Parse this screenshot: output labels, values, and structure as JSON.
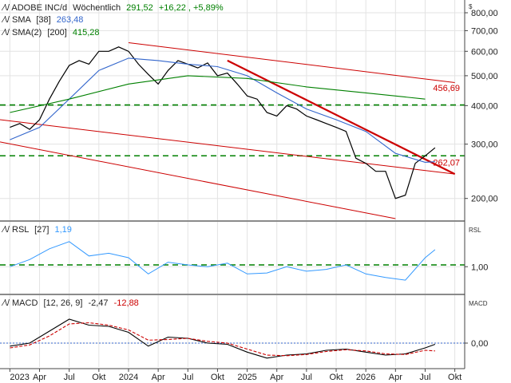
{
  "chart_data": {
    "type": "line",
    "currency_symbol": "$",
    "panels": {
      "price": {
        "header": {
          "ticker": "ADOBE INC/d",
          "interval": "Wöchentlich",
          "last": "291,52",
          "change": "+16,22",
          "change_pct": "+5,89%",
          "sma_short_label": "SMA",
          "sma_short_param": "[38]",
          "sma_short_value": "263,48",
          "sma_long_label": "SMA(2)",
          "sma_long_param": "[200]",
          "sma_long_value": "415,28"
        },
        "scale": "log",
        "ylim": [
          170,
          880
        ],
        "y_ticks": [
          "800,00",
          "700,00",
          "600,00",
          "500,00",
          "400,00",
          "300,00",
          "200,00"
        ],
        "y_tick_values": [
          800,
          700,
          600,
          500,
          400,
          300,
          200
        ],
        "series": [
          {
            "id": "close",
            "color": "#000000",
            "x": [
              "2023-01",
              "2023-02",
              "2023-03",
              "2023-04",
              "2023-05",
              "2023-06",
              "2023-07",
              "2023-08",
              "2023-09",
              "2023-10",
              "2023-11",
              "2023-12",
              "2024-01",
              "2024-02",
              "2024-03",
              "2024-04",
              "2024-05",
              "2024-06",
              "2024-07",
              "2024-08",
              "2024-09",
              "2024-10",
              "2024-11",
              "2024-12",
              "2025-01",
              "2025-02",
              "2025-03",
              "2025-04",
              "2025-05",
              "2025-06",
              "2025-07",
              "2025-08",
              "2025-09",
              "2025-10",
              "2025-11",
              "2025-12",
              "2026-01",
              "2026-02",
              "2026-03",
              "2026-04",
              "2026-05",
              "2026-06",
              "2026-07",
              "2026-08"
            ],
            "values": [
              340,
              350,
              335,
              360,
              420,
              480,
              540,
              560,
              545,
              600,
              600,
              620,
              600,
              545,
              505,
              470,
              520,
              560,
              545,
              530,
              550,
              500,
              510,
              470,
              430,
              420,
              380,
              370,
              400,
              390,
              370,
              360,
              350,
              340,
              330,
              270,
              260,
              245,
              245,
              200,
              205,
              260,
              275,
              292
            ]
          },
          {
            "id": "sma_short",
            "color": "#3366cc",
            "x": [
              "2023-01",
              "2023-04",
              "2023-07",
              "2023-10",
              "2024-01",
              "2024-04",
              "2024-07",
              "2024-10",
              "2025-01",
              "2025-04",
              "2025-07",
              "2025-10",
              "2026-01",
              "2026-04",
              "2026-07",
              "2026-08"
            ],
            "values": [
              310,
              340,
              420,
              520,
              570,
              560,
              545,
              535,
              500,
              440,
              390,
              360,
              330,
              280,
              262,
              263
            ]
          },
          {
            "id": "sma_long",
            "color": "#008000",
            "x": [
              "2023-01",
              "2023-07",
              "2024-01",
              "2024-07",
              "2025-01",
              "2025-07",
              "2026-01",
              "2026-07"
            ],
            "values": [
              380,
              420,
              470,
              500,
              490,
              460,
              440,
              420
            ]
          }
        ],
        "horizontal_levels": [
          {
            "value": 402,
            "color": "#008000",
            "style": "dashed"
          },
          {
            "value": 275,
            "color": "#008000",
            "style": "dashed"
          }
        ],
        "channel_lines": [
          {
            "from": [
              "2024-01",
              640
            ],
            "to": [
              "2026-10",
              475
            ],
            "color": "#cc0000"
          },
          {
            "from": [
              "2022-12",
              360
            ],
            "to": [
              "2026-10",
              240
            ],
            "color": "#cc0000"
          },
          {
            "from": [
              "2022-12",
              305
            ],
            "to": [
              "2026-04",
              172
            ],
            "color": "#cc0000"
          },
          {
            "from": [
              "2024-11",
              560
            ],
            "to": [
              "2026-10",
              240
            ],
            "color": "#cc0000",
            "bold": true
          }
        ],
        "price_labels": [
          {
            "text": "456,69",
            "value": 456.69
          },
          {
            "text": "262,07",
            "value": 262.07
          }
        ]
      },
      "rsl": {
        "header": {
          "label": "RSL",
          "param": "[27]",
          "value": "1,19"
        },
        "axis_label": "RSL",
        "ylim": [
          0.7,
          1.5
        ],
        "y_ticks": [
          "1,00"
        ],
        "y_tick_values": [
          1.0
        ],
        "series": [
          {
            "id": "rsl",
            "color": "#3399ff",
            "x": [
              "2023-01",
              "2023-03",
              "2023-05",
              "2023-07",
              "2023-09",
              "2023-11",
              "2024-01",
              "2024-03",
              "2024-05",
              "2024-07",
              "2024-09",
              "2024-11",
              "2025-01",
              "2025-03",
              "2025-05",
              "2025-07",
              "2025-09",
              "2025-11",
              "2026-01",
              "2026-03",
              "2026-05",
              "2026-07",
              "2026-08"
            ],
            "values": [
              1.0,
              1.08,
              1.2,
              1.28,
              1.12,
              1.15,
              1.1,
              0.92,
              1.05,
              1.02,
              1.0,
              1.04,
              0.92,
              0.93,
              1.0,
              0.95,
              0.97,
              1.02,
              0.92,
              0.88,
              0.85,
              1.1,
              1.19
            ]
          }
        ],
        "horizontal_levels": [
          {
            "value": 1.02,
            "color": "#008000",
            "style": "dashed"
          }
        ]
      },
      "macd": {
        "header": {
          "label": "MACD",
          "params": "[12, 26, 9]",
          "macd_value": "-2,47",
          "signal_value": "-12,88"
        },
        "axis_label": "MACD",
        "ylim": [
          -40,
          80
        ],
        "y_ticks": [
          "0,00"
        ],
        "y_tick_values": [
          0
        ],
        "series": [
          {
            "id": "macd",
            "color": "#000000",
            "x": [
              "2023-01",
              "2023-03",
              "2023-05",
              "2023-07",
              "2023-09",
              "2023-11",
              "2024-01",
              "2024-03",
              "2024-05",
              "2024-07",
              "2024-09",
              "2024-11",
              "2025-01",
              "2025-03",
              "2025-05",
              "2025-07",
              "2025-09",
              "2025-11",
              "2026-01",
              "2026-03",
              "2026-05",
              "2026-07",
              "2026-08"
            ],
            "values": [
              -5,
              0,
              20,
              40,
              30,
              28,
              18,
              -5,
              10,
              8,
              0,
              -2,
              -15,
              -25,
              -20,
              -18,
              -12,
              -10,
              -15,
              -20,
              -18,
              -8,
              -2
            ]
          },
          {
            "id": "signal",
            "color": "#cc0000",
            "x": [
              "2023-01",
              "2023-03",
              "2023-05",
              "2023-07",
              "2023-09",
              "2023-11",
              "2024-01",
              "2024-03",
              "2024-05",
              "2024-07",
              "2024-09",
              "2024-11",
              "2025-01",
              "2025-03",
              "2025-05",
              "2025-07",
              "2025-09",
              "2025-11",
              "2026-01",
              "2026-03",
              "2026-05",
              "2026-07",
              "2026-08"
            ],
            "values": [
              -8,
              -3,
              12,
              32,
              34,
              30,
              22,
              5,
              6,
              8,
              3,
              0,
              -10,
              -20,
              -21,
              -19,
              -14,
              -11,
              -13,
              -18,
              -19,
              -12,
              -13
            ]
          }
        ],
        "horizontal_levels": [
          {
            "value": 0,
            "color": "#3366cc",
            "style": "dotted"
          }
        ]
      }
    },
    "x_axis": {
      "ticks": [
        "2023",
        "Apr",
        "Jul",
        "Okt",
        "2024",
        "Apr",
        "Jul",
        "Okt",
        "2025",
        "Apr",
        "Jul",
        "Okt",
        "2026",
        "Apr",
        "Jul",
        "Okt"
      ],
      "tick_dates": [
        "2023-01",
        "2023-04",
        "2023-07",
        "2023-10",
        "2024-01",
        "2024-04",
        "2024-07",
        "2024-10",
        "2025-01",
        "2025-04",
        "2025-07",
        "2025-10",
        "2026-01",
        "2026-04",
        "2026-07",
        "2026-10"
      ],
      "xlim": [
        "2022-12",
        "2026-11"
      ]
    }
  }
}
